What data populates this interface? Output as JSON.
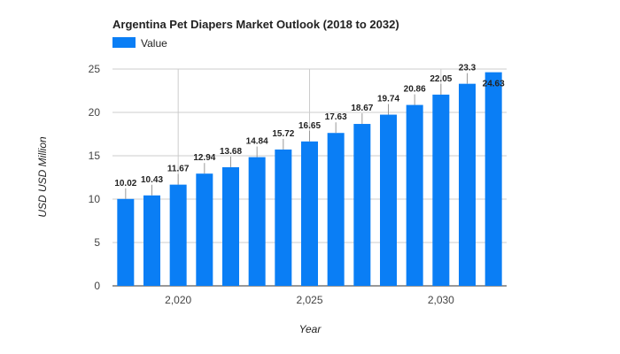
{
  "chart_data": {
    "type": "bar",
    "title": "Argentina Pet Diapers Market Outlook (2018 to 2032)",
    "xlabel": "Year",
    "ylabel": "USD USD Million",
    "x": [
      2018,
      2019,
      2020,
      2021,
      2022,
      2023,
      2024,
      2025,
      2026,
      2027,
      2028,
      2029,
      2030,
      2031,
      2032
    ],
    "series": [
      {
        "name": "Value",
        "color": "#0a7ef5",
        "values": [
          10.02,
          10.43,
          11.67,
          12.94,
          13.68,
          14.84,
          15.72,
          16.65,
          17.63,
          18.67,
          19.74,
          20.86,
          22.05,
          23.3,
          24.63
        ],
        "labels": [
          "10.02",
          "10.43",
          "11.67",
          "12.94",
          "13.68",
          "14.84",
          "15.72",
          "16.65",
          "17.63",
          "18.67",
          "19.74",
          "20.86",
          "22.05",
          "23.3",
          "24.63"
        ]
      }
    ],
    "ylim": [
      0,
      25
    ],
    "yticks": [
      0,
      5,
      10,
      15,
      20,
      25
    ],
    "xticks": [
      2020,
      2025,
      2030
    ],
    "xtick_labels": [
      "2,020",
      "2,025",
      "2,030"
    ],
    "grid": true,
    "legend_position": "top-left"
  }
}
